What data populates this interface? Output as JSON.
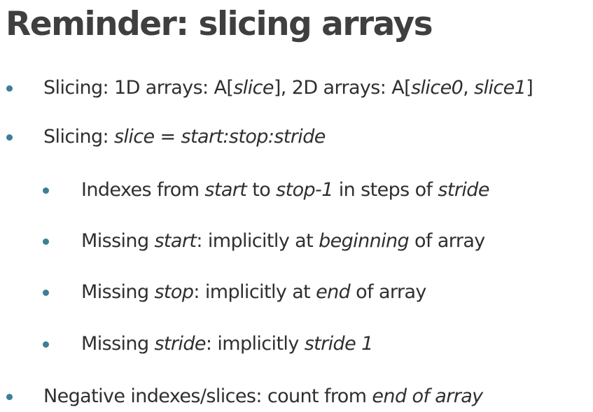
{
  "slide": {
    "title": "Reminder: slicing arrays",
    "bullets": [
      {
        "level": 1,
        "segments": [
          {
            "text": "Slicing: 1D arrays: A[",
            "italic": false
          },
          {
            "text": "slice",
            "italic": true
          },
          {
            "text": "], 2D arrays: A[",
            "italic": false
          },
          {
            "text": "slice0",
            "italic": true
          },
          {
            "text": ", ",
            "italic": false
          },
          {
            "text": "slice1",
            "italic": true
          },
          {
            "text": "]",
            "italic": false
          }
        ]
      },
      {
        "level": 1,
        "segments": [
          {
            "text": "Slicing: ",
            "italic": false
          },
          {
            "text": "slice = start:stop:stride",
            "italic": true
          }
        ]
      },
      {
        "level": 2,
        "segments": [
          {
            "text": "Indexes from ",
            "italic": false
          },
          {
            "text": "start",
            "italic": true
          },
          {
            "text": " to ",
            "italic": false
          },
          {
            "text": "stop-1",
            "italic": true
          },
          {
            "text": " in steps of ",
            "italic": false
          },
          {
            "text": "stride",
            "italic": true
          }
        ]
      },
      {
        "level": 2,
        "segments": [
          {
            "text": "Missing ",
            "italic": false
          },
          {
            "text": "start",
            "italic": true
          },
          {
            "text": ": implicitly at ",
            "italic": false
          },
          {
            "text": "beginning",
            "italic": true
          },
          {
            "text": " of array",
            "italic": false
          }
        ]
      },
      {
        "level": 2,
        "segments": [
          {
            "text": "Missing ",
            "italic": false
          },
          {
            "text": "stop",
            "italic": true
          },
          {
            "text": ": implicitly at ",
            "italic": false
          },
          {
            "text": "end",
            "italic": true
          },
          {
            "text": " of array",
            "italic": false
          }
        ]
      },
      {
        "level": 2,
        "segments": [
          {
            "text": "Missing ",
            "italic": false
          },
          {
            "text": "stride",
            "italic": true
          },
          {
            "text": ": implicitly ",
            "italic": false
          },
          {
            "text": "stride 1",
            "italic": true
          }
        ]
      },
      {
        "level": 1,
        "segments": [
          {
            "text": "Negative indexes/slices: count from ",
            "italic": false
          },
          {
            "text": "end of array",
            "italic": true
          }
        ]
      }
    ]
  },
  "colors": {
    "bullet": "#3d7f93",
    "title": "#3f3f3f",
    "text": "#2f2f2f",
    "background": "#ffffff"
  }
}
